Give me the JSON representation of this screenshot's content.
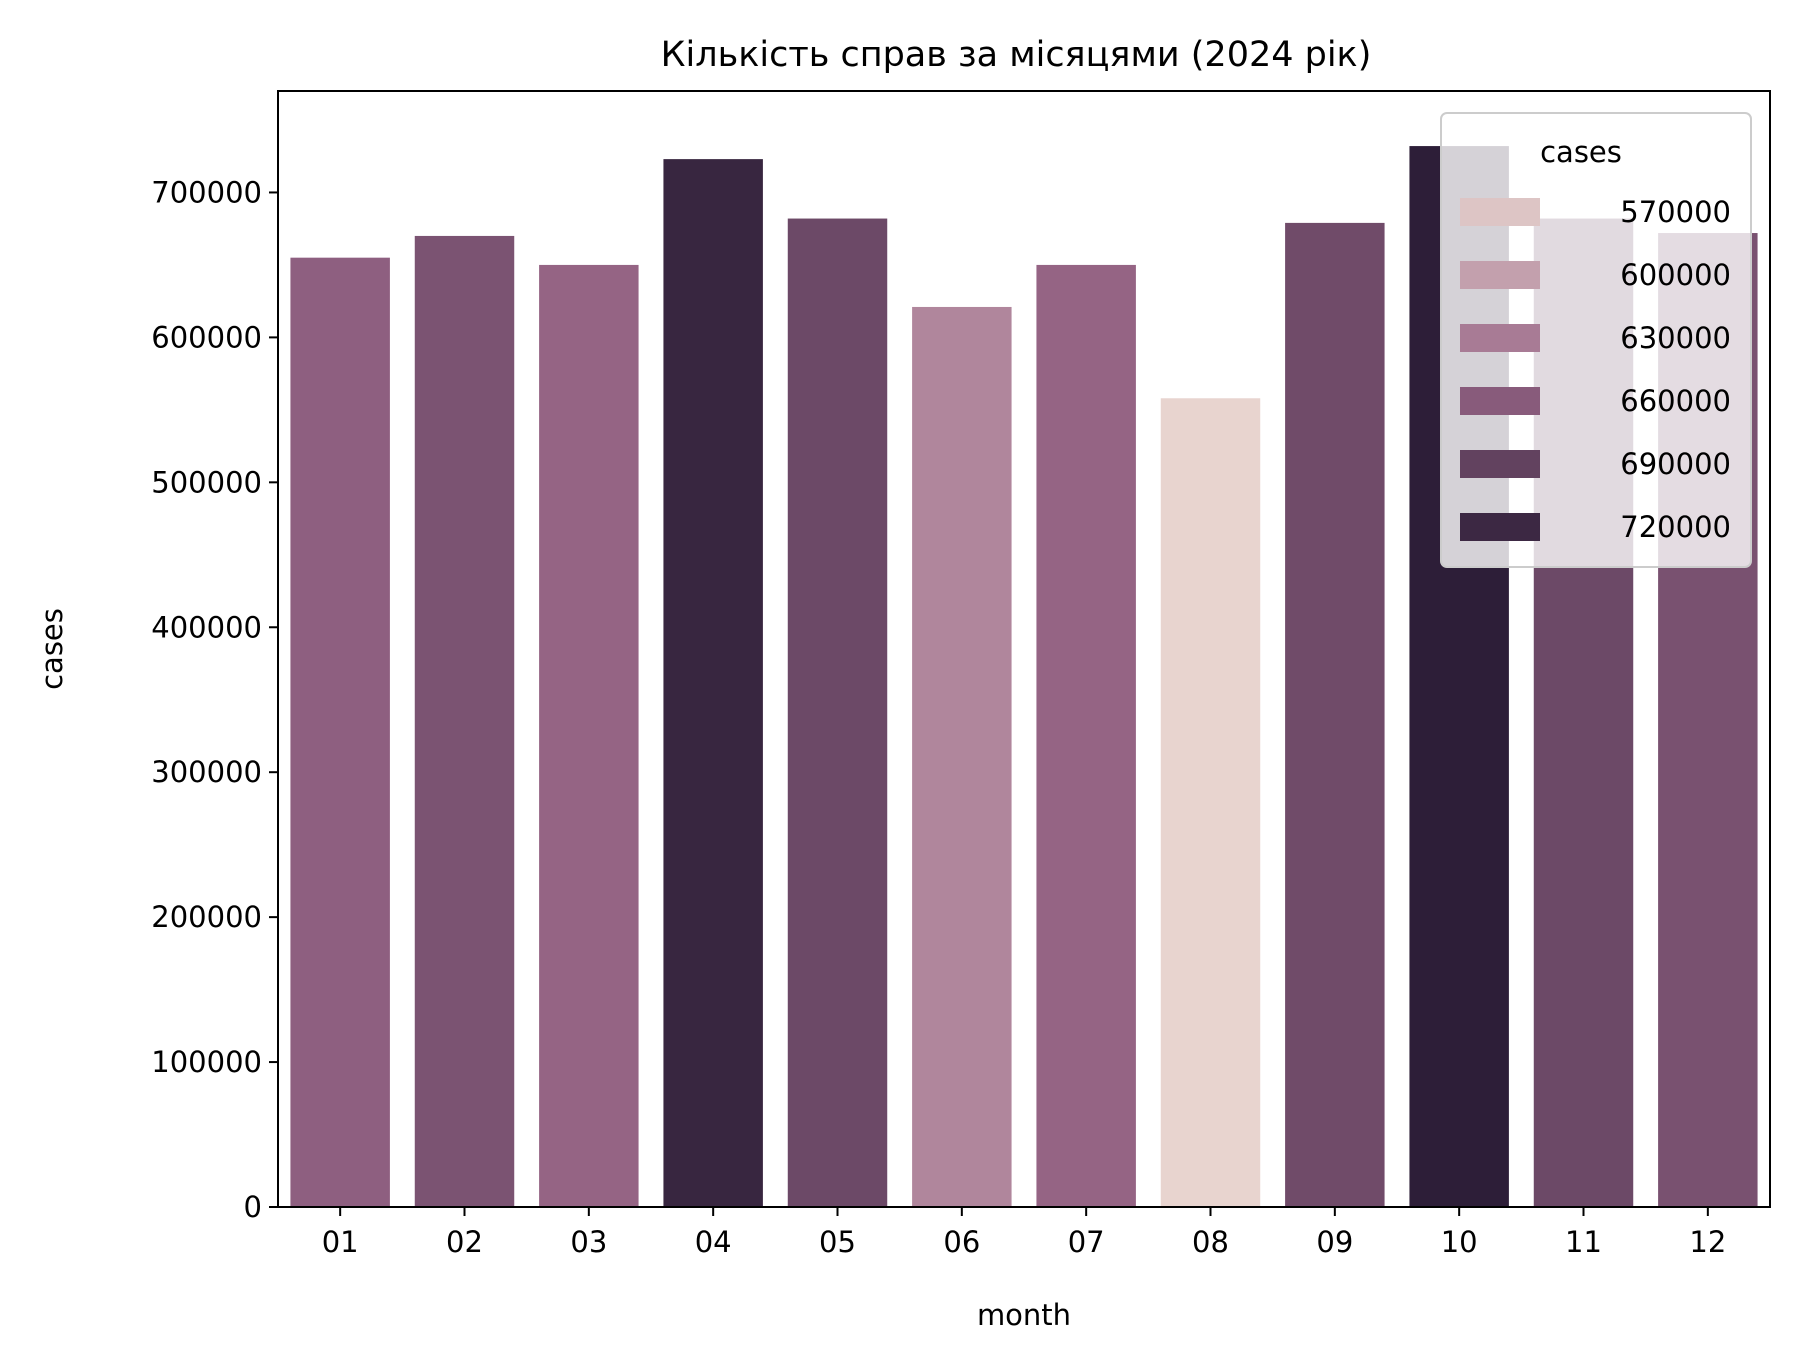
{
  "chart_data": {
    "type": "bar",
    "title": "Кількість справ за місяцями (2024 рік)",
    "xlabel": "month",
    "ylabel": "cases",
    "categories": [
      "01",
      "02",
      "03",
      "04",
      "05",
      "06",
      "07",
      "08",
      "09",
      "10",
      "11",
      "12"
    ],
    "values": [
      655000,
      670000,
      650000,
      723000,
      682000,
      621000,
      650000,
      558000,
      679000,
      732000,
      682000,
      672000
    ],
    "ylim": [
      0,
      770000
    ],
    "yticks": [
      0,
      100000,
      200000,
      300000,
      400000,
      500000,
      600000,
      700000
    ],
    "ytick_labels": [
      "0",
      "100000",
      "200000",
      "300000",
      "400000",
      "500000",
      "600000",
      "700000"
    ],
    "hue": "cases",
    "color_range": [
      558000,
      732000
    ],
    "palette_low": "#e8d4cf",
    "palette_mid": "#9b6889",
    "palette_high": "#2d1e38",
    "legend": {
      "title": "cases",
      "position": "top-right",
      "entries": [
        {
          "label": "570000",
          "value": 570000
        },
        {
          "label": "600000",
          "value": 600000
        },
        {
          "label": "630000",
          "value": 630000
        },
        {
          "label": "660000",
          "value": 660000
        },
        {
          "label": "690000",
          "value": 690000
        },
        {
          "label": "720000",
          "value": 720000
        }
      ]
    },
    "grid": false
  }
}
